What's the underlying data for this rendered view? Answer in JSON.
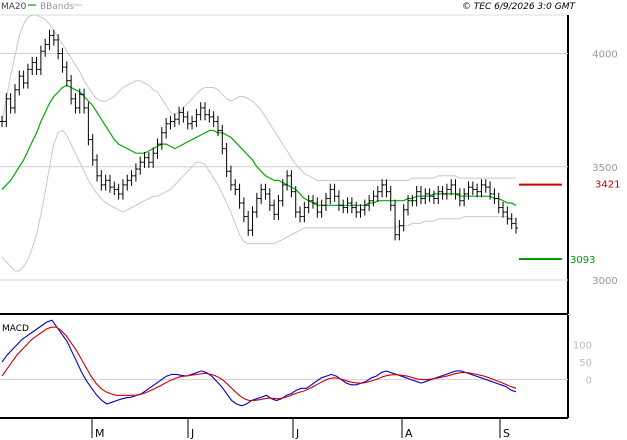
{
  "chart_data": [
    {
      "type": "ohlc",
      "panel": "price",
      "legend": [
        {
          "label": "MA20",
          "color": "#00aa00"
        },
        {
          "label": "BBands",
          "color": "#c8c8c8"
        }
      ],
      "watermark": "© TEC 6/9/2026 3:0 GMT",
      "y_axis": {
        "ticks": [
          3000,
          3500,
          4000
        ],
        "tick_labels": [
          "3000",
          "3500",
          "4000"
        ],
        "ylim": [
          2850,
          4170
        ]
      },
      "x_axis": {
        "tick_labels": [
          "M",
          "J",
          "J",
          "A",
          "S"
        ]
      },
      "levels": [
        {
          "label": "3421",
          "value": 3421,
          "color": "#cc0000"
        },
        {
          "label": "3093",
          "value": 3093,
          "color": "#009900"
        }
      ],
      "series_colors": {
        "price": "#000000",
        "ma": "#00aa00",
        "bbands": "#c8c8c8"
      },
      "close": [
        3700,
        3800,
        3760,
        3840,
        3900,
        3870,
        3930,
        3960,
        3930,
        4010,
        4040,
        4080,
        4060,
        4000,
        3940,
        3880,
        3800,
        3760,
        3820,
        3760,
        3620,
        3530,
        3460,
        3420,
        3440,
        3410,
        3400,
        3380,
        3420,
        3440,
        3460,
        3490,
        3520,
        3540,
        3520,
        3560,
        3600,
        3650,
        3690,
        3700,
        3710,
        3740,
        3720,
        3690,
        3700,
        3730,
        3760,
        3730,
        3720,
        3700,
        3660,
        3580,
        3480,
        3420,
        3400,
        3340,
        3280,
        3220,
        3300,
        3360,
        3400,
        3380,
        3330,
        3290,
        3350,
        3420,
        3460,
        3390,
        3300,
        3280,
        3320,
        3350,
        3340,
        3300,
        3330,
        3360,
        3400,
        3370,
        3330,
        3320,
        3340,
        3320,
        3300,
        3310,
        3330,
        3350,
        3370,
        3390,
        3420,
        3390,
        3330,
        3200,
        3240,
        3310,
        3350,
        3350,
        3390,
        3360,
        3380,
        3370,
        3360,
        3390,
        3380,
        3400,
        3420,
        3380,
        3350,
        3380,
        3410,
        3400,
        3390,
        3420,
        3410,
        3380,
        3360,
        3320,
        3300,
        3270,
        3250,
        3230
      ],
      "ma20": [
        3400,
        3420,
        3440,
        3470,
        3500,
        3530,
        3570,
        3610,
        3650,
        3700,
        3740,
        3780,
        3810,
        3830,
        3850,
        3860,
        3850,
        3840,
        3830,
        3810,
        3790,
        3770,
        3740,
        3710,
        3680,
        3650,
        3620,
        3600,
        3590,
        3580,
        3570,
        3560,
        3560,
        3560,
        3570,
        3580,
        3590,
        3600,
        3600,
        3590,
        3580,
        3590,
        3600,
        3610,
        3620,
        3630,
        3640,
        3650,
        3660,
        3660,
        3650,
        3650,
        3640,
        3630,
        3610,
        3590,
        3570,
        3550,
        3530,
        3500,
        3480,
        3460,
        3450,
        3440,
        3440,
        3430,
        3420,
        3410,
        3400,
        3380,
        3360,
        3350,
        3340,
        3330,
        3330,
        3330,
        3330,
        3330,
        3330,
        3330,
        3330,
        3330,
        3330,
        3330,
        3330,
        3340,
        3340,
        3350,
        3350,
        3350,
        3350,
        3350,
        3350,
        3350,
        3360,
        3360,
        3370,
        3370,
        3370,
        3370,
        3380,
        3380,
        3380,
        3380,
        3380,
        3380,
        3370,
        3370,
        3370,
        3370,
        3370,
        3370,
        3370,
        3370,
        3360,
        3360,
        3350,
        3340,
        3340,
        3330
      ],
      "bb_upper": [
        3700,
        3800,
        3900,
        3990,
        4080,
        4130,
        4160,
        4170,
        4170,
        4160,
        4150,
        4130,
        4100,
        4070,
        4040,
        4010,
        3980,
        3950,
        3920,
        3880,
        3850,
        3820,
        3800,
        3790,
        3790,
        3800,
        3810,
        3830,
        3850,
        3860,
        3870,
        3880,
        3880,
        3870,
        3860,
        3840,
        3830,
        3800,
        3770,
        3740,
        3730,
        3740,
        3760,
        3780,
        3800,
        3820,
        3840,
        3850,
        3850,
        3850,
        3840,
        3820,
        3800,
        3790,
        3800,
        3810,
        3810,
        3800,
        3790,
        3770,
        3750,
        3720,
        3690,
        3660,
        3630,
        3600,
        3570,
        3540,
        3510,
        3490,
        3470,
        3460,
        3450,
        3440,
        3440,
        3440,
        3440,
        3440,
        3440,
        3440,
        3440,
        3440,
        3440,
        3440,
        3440,
        3440,
        3440,
        3440,
        3440,
        3440,
        3440,
        3440,
        3440,
        3440,
        3440,
        3450,
        3450,
        3450,
        3450,
        3450,
        3450,
        3460,
        3460,
        3460,
        3460,
        3460,
        3450,
        3450,
        3450,
        3450,
        3450,
        3450,
        3450,
        3450,
        3450,
        3450,
        3450,
        3450,
        3450,
        3450
      ],
      "bb_lower": [
        3100,
        3080,
        3060,
        3040,
        3040,
        3060,
        3090,
        3140,
        3200,
        3290,
        3390,
        3500,
        3600,
        3650,
        3660,
        3640,
        3600,
        3560,
        3520,
        3480,
        3440,
        3410,
        3380,
        3360,
        3340,
        3330,
        3320,
        3310,
        3300,
        3310,
        3320,
        3330,
        3340,
        3350,
        3360,
        3370,
        3370,
        3380,
        3390,
        3400,
        3420,
        3440,
        3460,
        3480,
        3500,
        3520,
        3520,
        3510,
        3480,
        3450,
        3420,
        3380,
        3340,
        3300,
        3250,
        3200,
        3170,
        3160,
        3160,
        3160,
        3160,
        3160,
        3160,
        3160,
        3170,
        3180,
        3190,
        3200,
        3210,
        3220,
        3230,
        3230,
        3230,
        3230,
        3230,
        3230,
        3230,
        3230,
        3230,
        3230,
        3230,
        3230,
        3230,
        3230,
        3230,
        3230,
        3230,
        3230,
        3230,
        3230,
        3230,
        3230,
        3240,
        3240,
        3240,
        3250,
        3250,
        3250,
        3260,
        3260,
        3260,
        3270,
        3270,
        3270,
        3270,
        3270,
        3270,
        3280,
        3280,
        3280,
        3280,
        3280,
        3280,
        3280,
        3280,
        3280,
        3280,
        3280,
        3270,
        3270
      ]
    },
    {
      "type": "line",
      "panel": "macd",
      "title": "MACD",
      "y_axis": {
        "ticks": [
          100,
          50,
          0
        ],
        "tick_labels": [
          "100",
          "50",
          "0"
        ],
        "ylim": [
          -110,
          185
        ]
      },
      "series": [
        {
          "name": "MACD",
          "color": "#0000cc",
          "values": [
            50,
            70,
            85,
            100,
            115,
            125,
            135,
            145,
            155,
            165,
            170,
            150,
            130,
            110,
            80,
            50,
            20,
            -5,
            -25,
            -45,
            -60,
            -70,
            -65,
            -60,
            -55,
            -52,
            -50,
            -45,
            -40,
            -30,
            -20,
            -10,
            0,
            10,
            15,
            15,
            12,
            10,
            15,
            20,
            25,
            20,
            10,
            -5,
            -20,
            -40,
            -60,
            -70,
            -75,
            -70,
            -60,
            -55,
            -50,
            -45,
            -55,
            -60,
            -55,
            -45,
            -40,
            -30,
            -25,
            -25,
            -15,
            -5,
            5,
            10,
            15,
            10,
            0,
            -10,
            -15,
            -15,
            -10,
            -5,
            5,
            10,
            20,
            25,
            20,
            15,
            10,
            5,
            0,
            -5,
            -10,
            -5,
            0,
            5,
            10,
            15,
            20,
            25,
            25,
            20,
            15,
            10,
            5,
            0,
            -5,
            -10,
            -15,
            -20,
            -30,
            -35
          ],
          "noteshape": null
        },
        {
          "name": "Signal",
          "color": "#cc0000",
          "values": [
            10,
            30,
            50,
            70,
            85,
            100,
            115,
            125,
            135,
            145,
            150,
            150,
            140,
            125,
            105,
            85,
            60,
            35,
            10,
            -10,
            -25,
            -35,
            -40,
            -45,
            -45,
            -45,
            -45,
            -45,
            -42,
            -38,
            -32,
            -25,
            -18,
            -10,
            -3,
            3,
            8,
            10,
            12,
            14,
            16,
            18,
            16,
            12,
            5,
            -5,
            -18,
            -32,
            -45,
            -55,
            -60,
            -60,
            -58,
            -55,
            -53,
            -54,
            -55,
            -52,
            -48,
            -42,
            -37,
            -33,
            -27,
            -20,
            -12,
            -5,
            2,
            5,
            4,
            0,
            -5,
            -8,
            -10,
            -10,
            -7,
            -3,
            2,
            8,
            12,
            14,
            14,
            12,
            10,
            6,
            2,
            0,
            0,
            2,
            4,
            7,
            10,
            14,
            18,
            20,
            20,
            18,
            15,
            12,
            8,
            3,
            -3,
            -8,
            -14,
            -20,
            -25
          ]
        }
      ]
    }
  ]
}
